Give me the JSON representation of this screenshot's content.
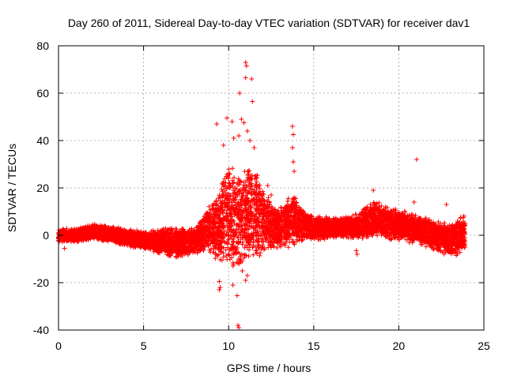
{
  "chart_data": {
    "type": "scatter",
    "title": "Day 260 of 2011, Sidereal Day-to-day VTEC variation (SDTVAR) for receiver dav1",
    "xlabel": "GPS time / hours",
    "ylabel": "SDTVAR / TECUs",
    "xlim": [
      0,
      25
    ],
    "ylim": [
      -40,
      80
    ],
    "xticks": [
      0,
      5,
      10,
      15,
      20,
      25
    ],
    "yticks": [
      -40,
      -20,
      0,
      20,
      40,
      60,
      80
    ],
    "grid": true,
    "marker": "+",
    "color": "#ff0000",
    "band_segments": [
      {
        "x": 0.0,
        "low": -3,
        "high": 3
      },
      {
        "x": 1.0,
        "low": -3,
        "high": 3
      },
      {
        "x": 2.0,
        "low": -2,
        "high": 5
      },
      {
        "x": 3.0,
        "low": -3,
        "high": 4
      },
      {
        "x": 4.0,
        "low": -5,
        "high": 3
      },
      {
        "x": 5.0,
        "low": -6,
        "high": 2
      },
      {
        "x": 6.0,
        "low": -8,
        "high": 3
      },
      {
        "x": 7.0,
        "low": -10,
        "high": 4
      },
      {
        "x": 8.0,
        "low": -8,
        "high": 3
      },
      {
        "x": 8.8,
        "low": -7,
        "high": 12
      },
      {
        "x": 9.5,
        "low": -12,
        "high": 20
      },
      {
        "x": 10.0,
        "low": -15,
        "high": 35
      },
      {
        "x": 10.5,
        "low": -15,
        "high": 25
      },
      {
        "x": 11.0,
        "low": -12,
        "high": 30
      },
      {
        "x": 11.5,
        "low": -10,
        "high": 32
      },
      {
        "x": 12.0,
        "low": -8,
        "high": 20
      },
      {
        "x": 13.0,
        "low": -6,
        "high": 12
      },
      {
        "x": 13.8,
        "low": -5,
        "high": 18
      },
      {
        "x": 14.5,
        "low": -2,
        "high": 10
      },
      {
        "x": 15.5,
        "low": -2,
        "high": 8
      },
      {
        "x": 16.5,
        "low": -1,
        "high": 8
      },
      {
        "x": 17.5,
        "low": -2,
        "high": 9
      },
      {
        "x": 18.5,
        "low": -1,
        "high": 15
      },
      {
        "x": 19.5,
        "low": -2,
        "high": 12
      },
      {
        "x": 20.5,
        "low": -3,
        "high": 10
      },
      {
        "x": 21.5,
        "low": -5,
        "high": 8
      },
      {
        "x": 22.5,
        "low": -8,
        "high": 6
      },
      {
        "x": 23.3,
        "low": -10,
        "high": 6
      },
      {
        "x": 23.9,
        "low": -7,
        "high": 10
      }
    ],
    "outliers": [
      {
        "x": 11.0,
        "y": 73
      },
      {
        "x": 11.05,
        "y": 71.5
      },
      {
        "x": 11.0,
        "y": 66.5
      },
      {
        "x": 11.35,
        "y": 66
      },
      {
        "x": 11.4,
        "y": 56.5
      },
      {
        "x": 10.65,
        "y": 60
      },
      {
        "x": 9.9,
        "y": 49.5
      },
      {
        "x": 9.3,
        "y": 47
      },
      {
        "x": 10.2,
        "y": 48
      },
      {
        "x": 10.75,
        "y": 49
      },
      {
        "x": 10.9,
        "y": 47.5
      },
      {
        "x": 10.6,
        "y": 42
      },
      {
        "x": 11.1,
        "y": 44
      },
      {
        "x": 9.7,
        "y": 38
      },
      {
        "x": 10.3,
        "y": 41
      },
      {
        "x": 11.25,
        "y": 40
      },
      {
        "x": 11.5,
        "y": 37
      },
      {
        "x": 13.75,
        "y": 46
      },
      {
        "x": 13.8,
        "y": 42.5
      },
      {
        "x": 13.75,
        "y": 37
      },
      {
        "x": 13.8,
        "y": 31
      },
      {
        "x": 13.85,
        "y": 27
      },
      {
        "x": 21.05,
        "y": 32
      },
      {
        "x": 9.45,
        "y": -19.5
      },
      {
        "x": 9.5,
        "y": -22
      },
      {
        "x": 9.45,
        "y": -23
      },
      {
        "x": 10.25,
        "y": -21
      },
      {
        "x": 10.5,
        "y": -25.5
      },
      {
        "x": 10.55,
        "y": -38
      },
      {
        "x": 10.6,
        "y": -39
      },
      {
        "x": 11.0,
        "y": -19
      },
      {
        "x": 11.1,
        "y": -17
      },
      {
        "x": 10.8,
        "y": -15
      },
      {
        "x": 17.5,
        "y": -6.5
      },
      {
        "x": 17.55,
        "y": -8
      },
      {
        "x": 0.35,
        "y": -5.5
      },
      {
        "x": 22.8,
        "y": 13
      },
      {
        "x": 20.9,
        "y": 14
      },
      {
        "x": 18.5,
        "y": 19
      },
      {
        "x": 12.3,
        "y": 21
      },
      {
        "x": 12.5,
        "y": 17
      }
    ]
  }
}
